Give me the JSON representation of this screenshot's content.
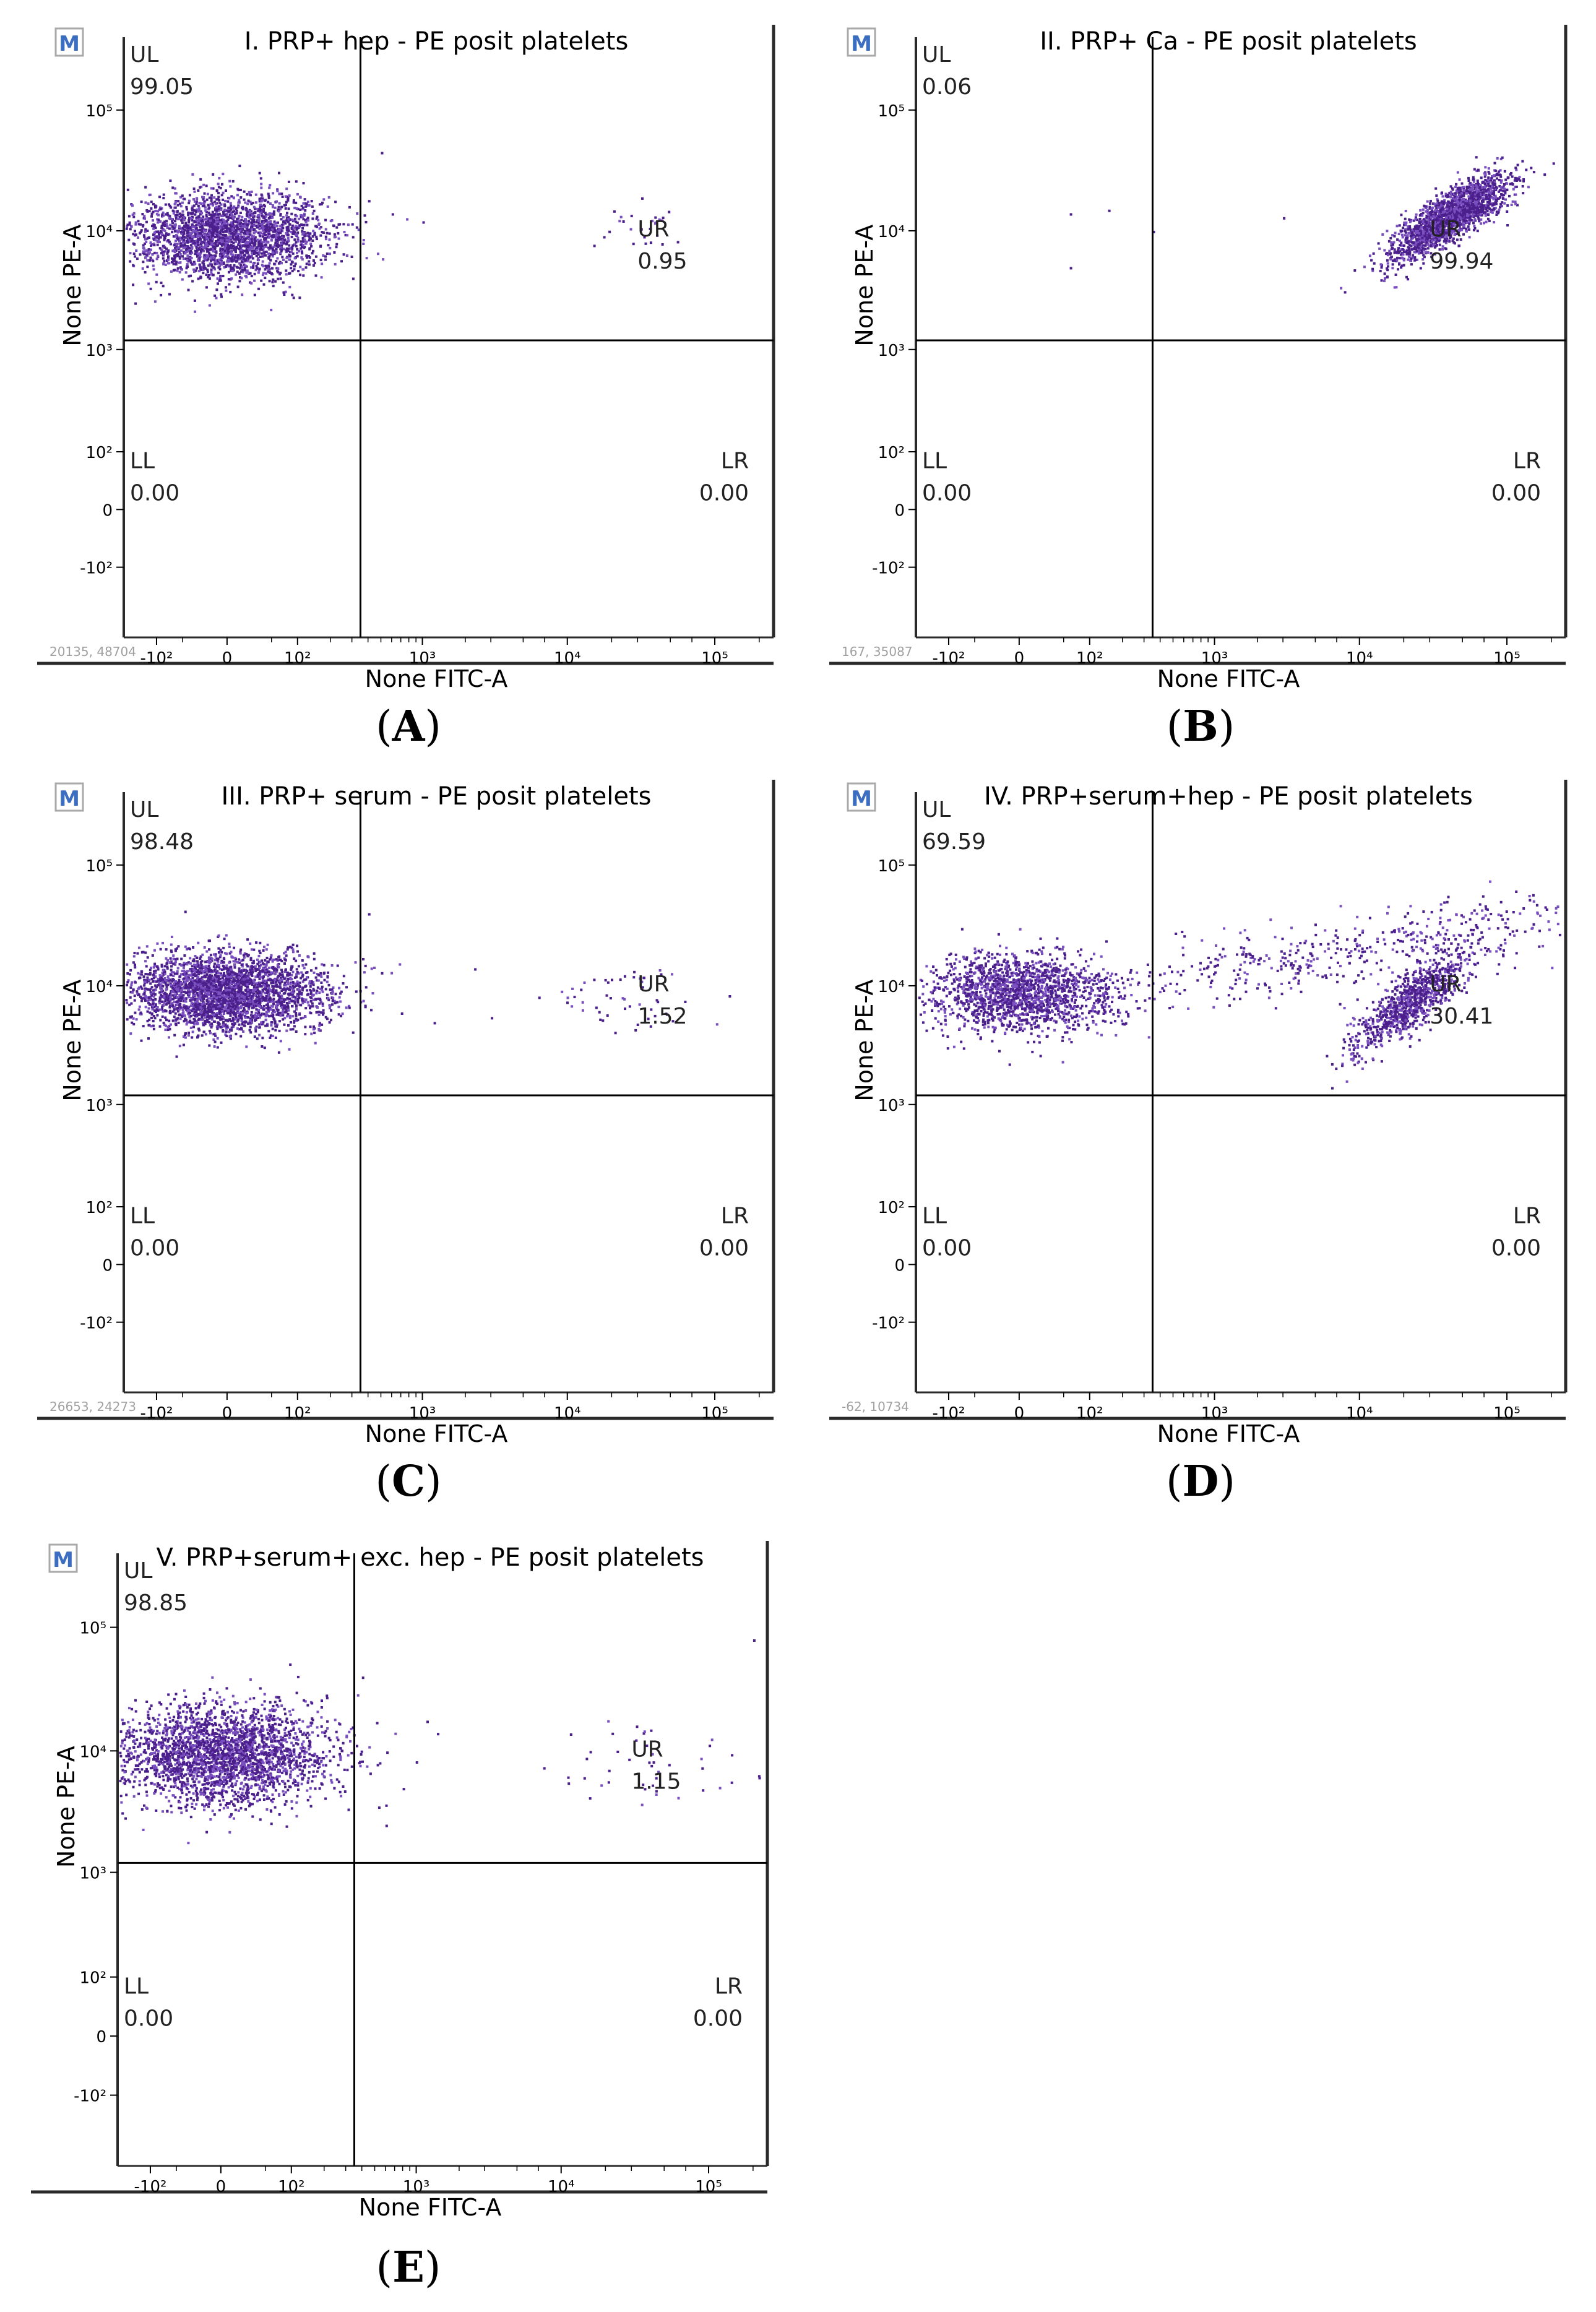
{
  "colors": {
    "dot": "#4b1f8c",
    "dot_light": "#7a4fc0",
    "axis": "#000000",
    "frame": "#2a2a2a",
    "marker_box": "#a9a9a9",
    "marker_text": "#3b6ec1",
    "footer_text": "#a0a0a0"
  },
  "chart_data": [
    {
      "id": "A",
      "type": "scatter",
      "marker": "M",
      "title": "I. PRP+ hep - PE posit platelets",
      "xlabel": "None FITC-A",
      "ylabel": "None PE-A",
      "x_ticks": [
        "-10²",
        "0",
        "10²",
        "10³",
        "10⁴",
        "10⁵"
      ],
      "y_ticks": [
        "10⁵",
        "10⁴",
        "10³",
        "10²",
        "0",
        "-10²"
      ],
      "quadrant_gate": {
        "x": 350,
        "y": 1200
      },
      "quadrants": [
        {
          "name": "UL",
          "percent": "99.05"
        },
        {
          "name": "UR",
          "percent": "0.95"
        },
        {
          "name": "LL",
          "percent": "0.00"
        },
        {
          "name": "LR",
          "percent": "0.00"
        }
      ],
      "footer": "20135, 48704",
      "populations": [
        {
          "x_center": 0,
          "y_center": 9500,
          "x_spread": 0.32,
          "y_spread": 0.18,
          "count": 2600
        },
        {
          "x_center": 30000,
          "y_center": 11000,
          "x_spread": 0.18,
          "y_spread": 0.12,
          "count": 28
        }
      ],
      "sparse_events": [
        [
          600,
          14000
        ],
        [
          1000,
          12000
        ],
        [
          400,
          18000
        ],
        [
          500,
          45000
        ]
      ],
      "caption": "A"
    },
    {
      "id": "B",
      "type": "scatter",
      "marker": "M",
      "title": "II. PRP+ Ca - PE posit platelets",
      "xlabel": "None FITC-A",
      "ylabel": "None PE-A",
      "x_ticks": [
        "-10²",
        "0",
        "10²",
        "10³",
        "10⁴",
        "10⁵"
      ],
      "y_ticks": [
        "10⁵",
        "10⁴",
        "10³",
        "10²",
        "0",
        "-10²"
      ],
      "quadrant_gate": {
        "x": 350,
        "y": 1200
      },
      "quadrants": [
        {
          "name": "UL",
          "percent": "0.06"
        },
        {
          "name": "UR",
          "percent": "99.94"
        },
        {
          "name": "LL",
          "percent": "0.00"
        },
        {
          "name": "LR",
          "percent": "0.00"
        }
      ],
      "footer": "167, 35087",
      "populations": [
        {
          "x_center": 40000,
          "y_center": 13000,
          "x_spread": 0.2,
          "y_spread": 0.1,
          "count": 1900,
          "diagonal": 0.75
        }
      ],
      "sparse_events": [
        [
          60,
          14000
        ],
        [
          150,
          15000
        ],
        [
          60,
          5000
        ],
        [
          350,
          10000
        ],
        [
          3000,
          13000
        ]
      ],
      "caption": "B"
    },
    {
      "id": "C",
      "type": "scatter",
      "marker": "M",
      "title": "III. PRP+ serum - PE posit platelets",
      "xlabel": "None FITC-A",
      "ylabel": "None PE-A",
      "x_ticks": [
        "-10²",
        "0",
        "10²",
        "10³",
        "10⁴",
        "10⁵"
      ],
      "y_ticks": [
        "10⁵",
        "10⁴",
        "10³",
        "10²",
        "0",
        "-10²"
      ],
      "quadrant_gate": {
        "x": 350,
        "y": 1200
      },
      "quadrants": [
        {
          "name": "UL",
          "percent": "98.48"
        },
        {
          "name": "UR",
          "percent": "1.52"
        },
        {
          "name": "LL",
          "percent": "0.00"
        },
        {
          "name": "LR",
          "percent": "0.00"
        }
      ],
      "footer": "26653, 24273",
      "populations": [
        {
          "x_center": 0,
          "y_center": 9000,
          "x_spread": 0.34,
          "y_spread": 0.16,
          "count": 3000
        },
        {
          "x_center": 25000,
          "y_center": 8000,
          "x_spread": 0.25,
          "y_spread": 0.16,
          "count": 55
        }
      ],
      "sparse_events": [
        [
          400,
          40000
        ],
        [
          500,
          13000
        ],
        [
          700,
          6000
        ],
        [
          1200,
          5000
        ],
        [
          2300,
          14000
        ],
        [
          3000,
          5500
        ]
      ],
      "caption": "C"
    },
    {
      "id": "D",
      "type": "scatter",
      "marker": "M",
      "title": "IV. PRP+serum+hep - PE posit platelets",
      "xlabel": "None FITC-A",
      "ylabel": "None PE-A",
      "x_ticks": [
        "-10²",
        "0",
        "10²",
        "10³",
        "10⁴",
        "10⁵"
      ],
      "y_ticks": [
        "10⁵",
        "10⁴",
        "10³",
        "10²",
        "0",
        "-10²"
      ],
      "quadrant_gate": {
        "x": 350,
        "y": 1200
      },
      "quadrants": [
        {
          "name": "UL",
          "percent": "69.59"
        },
        {
          "name": "UR",
          "percent": "30.41"
        },
        {
          "name": "LL",
          "percent": "0.00"
        },
        {
          "name": "LR",
          "percent": "0.00"
        }
      ],
      "footer": "-62, 10734",
      "populations": [
        {
          "x_center": 0,
          "y_center": 9000,
          "x_spread": 0.3,
          "y_spread": 0.16,
          "count": 1700
        },
        {
          "x_center": 22000,
          "y_center": 7500,
          "x_spread": 0.2,
          "y_spread": 0.12,
          "count": 900,
          "diagonal": 0.9
        },
        {
          "x_center": 8000,
          "y_center": 20000,
          "x_spread": 1.0,
          "y_spread": 0.15,
          "count": 520,
          "diagonal": 0.22
        }
      ],
      "sparse_events": [],
      "caption": "D"
    },
    {
      "id": "E",
      "type": "scatter",
      "marker": "M",
      "title": "V. PRP+serum+ exc. hep - PE posit platelets",
      "xlabel": "None FITC-A",
      "ylabel": "None PE-A",
      "x_ticks": [
        "-10²",
        "0",
        "10²",
        "10³",
        "10⁴",
        "10⁵"
      ],
      "y_ticks": [
        "10⁵",
        "10⁴",
        "10³",
        "10²",
        "0",
        "-10²"
      ],
      "quadrant_gate": {
        "x": 350,
        "y": 1200
      },
      "quadrants": [
        {
          "name": "UL",
          "percent": "98.85"
        },
        {
          "name": "UR",
          "percent": "1.15"
        },
        {
          "name": "LL",
          "percent": "0.00"
        },
        {
          "name": "LR",
          "percent": "0.00"
        }
      ],
      "footer": "",
      "populations": [
        {
          "x_center": 0,
          "y_center": 9500,
          "x_spread": 0.36,
          "y_spread": 0.2,
          "count": 2600
        },
        {
          "x_center": 40000,
          "y_center": 8000,
          "x_spread": 0.3,
          "y_spread": 0.2,
          "count": 45
        }
      ],
      "sparse_events": [
        [
          400,
          40000
        ],
        [
          600,
          2500
        ],
        [
          800,
          5000
        ],
        [
          1400,
          14000
        ],
        [
          200000,
          80000
        ]
      ],
      "caption": "E"
    }
  ]
}
